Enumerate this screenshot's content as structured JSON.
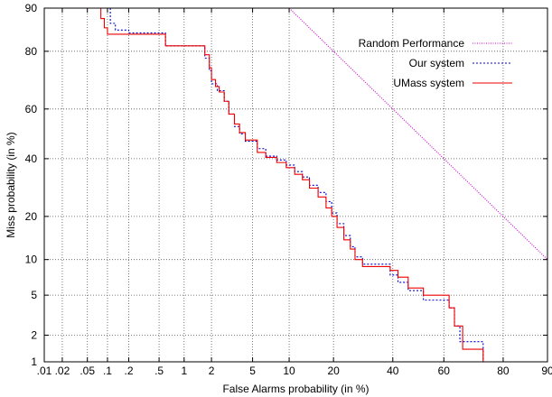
{
  "chart_data": {
    "type": "line",
    "title": "",
    "xlabel": "False Alarms probability (in %)",
    "ylabel": "Miss probability (in %)",
    "scale": "normal-deviate (DET)",
    "grid": true,
    "legend_position": "top-right",
    "xlim": [
      0.01,
      90
    ],
    "ylim": [
      1,
      90
    ],
    "x_ticks": [
      {
        "value": 0.01,
        "label": ".01"
      },
      {
        "value": 0.02,
        "label": ".02"
      },
      {
        "value": 0.05,
        "label": ".05"
      },
      {
        "value": 0.1,
        "label": ".1"
      },
      {
        "value": 0.2,
        "label": ".2"
      },
      {
        "value": 0.5,
        "label": ".5"
      },
      {
        "value": 1,
        "label": "1"
      },
      {
        "value": 2,
        "label": "2"
      },
      {
        "value": 5,
        "label": "5"
      },
      {
        "value": 10,
        "label": "10"
      },
      {
        "value": 20,
        "label": "20"
      },
      {
        "value": 40,
        "label": "40"
      },
      {
        "value": 60,
        "label": "60"
      },
      {
        "value": 80,
        "label": "80"
      },
      {
        "value": 90,
        "label": "90"
      }
    ],
    "y_ticks": [
      {
        "value": 1,
        "label": "1"
      },
      {
        "value": 2,
        "label": "2"
      },
      {
        "value": 5,
        "label": "5"
      },
      {
        "value": 10,
        "label": "10"
      },
      {
        "value": 20,
        "label": "20"
      },
      {
        "value": 40,
        "label": "40"
      },
      {
        "value": 60,
        "label": "60"
      },
      {
        "value": 80,
        "label": "80"
      },
      {
        "value": 90,
        "label": "90"
      }
    ],
    "series": [
      {
        "name": "Random Performance",
        "color": "#cc00cc",
        "style": "dotted",
        "points": [
          [
            10,
            90
          ],
          [
            20,
            80
          ],
          [
            40,
            60
          ],
          [
            60,
            40
          ],
          [
            80,
            20
          ],
          [
            90,
            10
          ]
        ]
      },
      {
        "name": "Our system",
        "color": "#0000cc",
        "style": "dashed",
        "points": [
          [
            0.11,
            90
          ],
          [
            0.11,
            87
          ],
          [
            0.13,
            87
          ],
          [
            0.13,
            85.5
          ],
          [
            0.2,
            85.5
          ],
          [
            0.2,
            84.8
          ],
          [
            0.6,
            84.8
          ],
          [
            0.6,
            81.5
          ],
          [
            1.7,
            81.5
          ],
          [
            1.7,
            78
          ],
          [
            1.9,
            78
          ],
          [
            1.9,
            74
          ],
          [
            2.0,
            74
          ],
          [
            2.0,
            69.5
          ],
          [
            2.3,
            69.5
          ],
          [
            2.3,
            67
          ],
          [
            2.7,
            67
          ],
          [
            2.7,
            63
          ],
          [
            3.0,
            63
          ],
          [
            3.0,
            58
          ],
          [
            3.4,
            58
          ],
          [
            3.4,
            53
          ],
          [
            3.8,
            53
          ],
          [
            3.8,
            50
          ],
          [
            4.3,
            50
          ],
          [
            4.3,
            47
          ],
          [
            5.5,
            47
          ],
          [
            5.5,
            44
          ],
          [
            6.5,
            44
          ],
          [
            6.5,
            41
          ],
          [
            8.0,
            41
          ],
          [
            8.0,
            39.5
          ],
          [
            9.5,
            39.5
          ],
          [
            9.5,
            37.5
          ],
          [
            11,
            37.5
          ],
          [
            11,
            35
          ],
          [
            12.5,
            35
          ],
          [
            12.5,
            33
          ],
          [
            14,
            33
          ],
          [
            14,
            30
          ],
          [
            16,
            30
          ],
          [
            16,
            27.5
          ],
          [
            18,
            27.5
          ],
          [
            18,
            24.5
          ],
          [
            19.5,
            24.5
          ],
          [
            19.5,
            21
          ],
          [
            21,
            21
          ],
          [
            21,
            18
          ],
          [
            23,
            18
          ],
          [
            23,
            15
          ],
          [
            25,
            15
          ],
          [
            25,
            12.5
          ],
          [
            26.5,
            12.5
          ],
          [
            26.5,
            10.5
          ],
          [
            29,
            10.5
          ],
          [
            29,
            9.2
          ],
          [
            39,
            9.2
          ],
          [
            39,
            7.5
          ],
          [
            42,
            7.5
          ],
          [
            42,
            6.5
          ],
          [
            46,
            6.5
          ],
          [
            46,
            5.5
          ],
          [
            52,
            5.5
          ],
          [
            52,
            4.5
          ],
          [
            62,
            4.5
          ],
          [
            62,
            3.8
          ],
          [
            64,
            3.8
          ],
          [
            64,
            2.5
          ],
          [
            66,
            2.5
          ],
          [
            66,
            1.7
          ],
          [
            74,
            1.7
          ],
          [
            74,
            1.0
          ]
        ]
      },
      {
        "name": "UMass system",
        "color": "#ee0000",
        "style": "solid",
        "points": [
          [
            0.08,
            90
          ],
          [
            0.08,
            88
          ],
          [
            0.09,
            88
          ],
          [
            0.09,
            86
          ],
          [
            0.1,
            86
          ],
          [
            0.1,
            84.5
          ],
          [
            0.6,
            84.5
          ],
          [
            0.6,
            81.5
          ],
          [
            1.7,
            81.5
          ],
          [
            1.7,
            79
          ],
          [
            1.9,
            79
          ],
          [
            1.9,
            75
          ],
          [
            2.0,
            75
          ],
          [
            2.0,
            71
          ],
          [
            2.2,
            71
          ],
          [
            2.2,
            68.5
          ],
          [
            2.4,
            68.5
          ],
          [
            2.4,
            66.5
          ],
          [
            2.7,
            66.5
          ],
          [
            2.7,
            63
          ],
          [
            3.0,
            63
          ],
          [
            3.0,
            58
          ],
          [
            3.4,
            58
          ],
          [
            3.4,
            54
          ],
          [
            3.8,
            54
          ],
          [
            3.8,
            50.5
          ],
          [
            4.3,
            50.5
          ],
          [
            4.3,
            47.5
          ],
          [
            5.5,
            47.5
          ],
          [
            5.5,
            42.5
          ],
          [
            6.5,
            42.5
          ],
          [
            6.5,
            40.5
          ],
          [
            8.0,
            40.5
          ],
          [
            8.0,
            38.5
          ],
          [
            9.5,
            38.5
          ],
          [
            9.5,
            36.5
          ],
          [
            11,
            36.5
          ],
          [
            11,
            34
          ],
          [
            12.5,
            34
          ],
          [
            12.5,
            32
          ],
          [
            14,
            32
          ],
          [
            14,
            29
          ],
          [
            16,
            29
          ],
          [
            16,
            26
          ],
          [
            18,
            26
          ],
          [
            18,
            22.5
          ],
          [
            19.5,
            22.5
          ],
          [
            19.5,
            20
          ],
          [
            21,
            20
          ],
          [
            21,
            17
          ],
          [
            23,
            17
          ],
          [
            23,
            14
          ],
          [
            25,
            14
          ],
          [
            25,
            12
          ],
          [
            26.5,
            12
          ],
          [
            26.5,
            10
          ],
          [
            29,
            10
          ],
          [
            29,
            8.8
          ],
          [
            39,
            8.8
          ],
          [
            39,
            8.2
          ],
          [
            42,
            8.2
          ],
          [
            42,
            7.2
          ],
          [
            46,
            7.2
          ],
          [
            46,
            5.8
          ],
          [
            52,
            5.8
          ],
          [
            52,
            5.0
          ],
          [
            62,
            5.0
          ],
          [
            62,
            3.8
          ],
          [
            64,
            3.8
          ],
          [
            64,
            2.5
          ],
          [
            67,
            2.5
          ],
          [
            67,
            1.4
          ],
          [
            74,
            1.4
          ],
          [
            74,
            1.0
          ]
        ]
      }
    ]
  }
}
